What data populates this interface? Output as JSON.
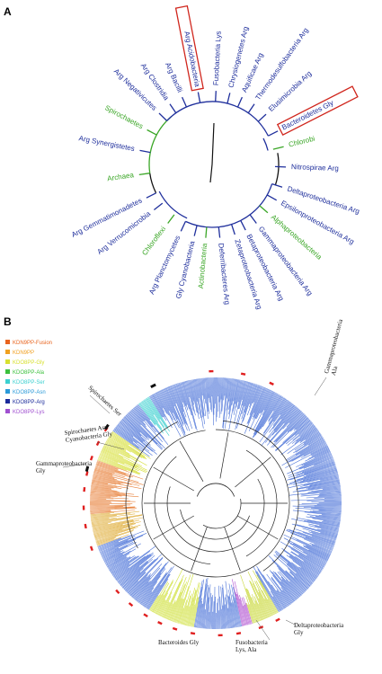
{
  "colors": {
    "blue": "#1f2f9c",
    "green": "#3aa626",
    "black": "#111111",
    "red_box": "#d0261d",
    "tree_blue": "#4a72d8",
    "tree_line": "#222222",
    "marker_red": "#e02020",
    "marker_black": "#101010"
  },
  "panel_a": {
    "letter": "A",
    "taxa": [
      {
        "name": "Acidobacteria",
        "aa": "Arg",
        "color": "blue",
        "boxed": true
      },
      {
        "name": "Fusobacteria",
        "aa": "Lys",
        "color": "blue",
        "boxed": false
      },
      {
        "name": "Chrysiogenetes",
        "aa": "Arg",
        "color": "blue",
        "boxed": false
      },
      {
        "name": "Aquificae",
        "aa": "Arg",
        "color": "blue",
        "boxed": false
      },
      {
        "name": "Thermodesulfobacteria",
        "aa": "Arg",
        "color": "blue",
        "boxed": false
      },
      {
        "name": "Elusimicrobia",
        "aa": "Arg",
        "color": "blue",
        "boxed": false
      },
      {
        "name": "Bacteroidetes",
        "aa": "Gly",
        "color": "blue",
        "boxed": true
      },
      {
        "name": "Chlorobi",
        "aa": "",
        "color": "green",
        "boxed": false
      },
      {
        "name": "Nitrospirae",
        "aa": "Arg",
        "color": "blue",
        "boxed": false
      },
      {
        "name": "Deltaproteobacteria",
        "aa": "Arg",
        "color": "blue",
        "boxed": false
      },
      {
        "name": "Epsilonproteobacteria",
        "aa": "Arg",
        "color": "blue",
        "boxed": false
      },
      {
        "name": "Alphaproteobacteria",
        "aa": "",
        "color": "green",
        "boxed": false
      },
      {
        "name": "Gammaproteobacteria",
        "aa": "Arg",
        "color": "blue",
        "boxed": false
      },
      {
        "name": "Betaproteobacteria",
        "aa": "Arg",
        "color": "blue",
        "boxed": false
      },
      {
        "name": "Zetaproteobacteria",
        "aa": "Arg",
        "color": "blue",
        "boxed": false
      },
      {
        "name": "Deferribacteres",
        "aa": "Arg",
        "color": "blue",
        "boxed": false
      },
      {
        "name": "Actinobacteria",
        "aa": "",
        "color": "green",
        "boxed": false
      },
      {
        "name": "Cyanobacteria",
        "aa": "Gly",
        "color": "blue",
        "boxed": false
      },
      {
        "name": "Planctomycetes",
        "aa": "Arg",
        "color": "blue",
        "boxed": false
      },
      {
        "name": "Chloroflexi",
        "aa": "",
        "color": "green",
        "boxed": false
      },
      {
        "name": "Verrucomicrobia",
        "aa": "Arg",
        "color": "blue",
        "boxed": false
      },
      {
        "name": "Gemmatimonadetes",
        "aa": "Arg",
        "color": "blue",
        "boxed": false
      },
      {
        "name": "Archaea",
        "aa": "",
        "color": "green",
        "boxed": false
      },
      {
        "name": "Synergistetes",
        "aa": "Arg",
        "color": "blue",
        "boxed": false
      },
      {
        "name": "Spirochaetes",
        "aa": "",
        "color": "green",
        "boxed": false
      },
      {
        "name": "Negativicutes",
        "aa": "Arg",
        "color": "blue",
        "boxed": false
      },
      {
        "name": "Clostridia",
        "aa": "Arg",
        "color": "blue",
        "boxed": false
      },
      {
        "name": "Bacilli",
        "aa": "Arg",
        "color": "blue",
        "boxed": false
      }
    ]
  },
  "panel_b": {
    "letter": "B",
    "legend": [
      {
        "label": "KDN9PP-Fusion",
        "color": "#e8641e"
      },
      {
        "label": "KDN9PP",
        "color": "#f0a020"
      },
      {
        "label": "KDO8PP-Gly",
        "color": "#d8e030"
      },
      {
        "label": "KDO8PP-Ala",
        "color": "#3cc03c"
      },
      {
        "label": "KDO8PP-Ser",
        "color": "#3cd0d0"
      },
      {
        "label": "KDO8PP-Asn",
        "color": "#2a9ad8"
      },
      {
        "label": "KDO8PP-Arg",
        "color": "#1a2a9a"
      },
      {
        "label": "KDO8PP-Lys",
        "color": "#a050d0"
      }
    ],
    "annotations": {
      "spirochaetes_ser": [
        "Spirochaetes Ser"
      ],
      "spirochaetes_asn": [
        "Spirochaetes Asn",
        "Cyanobacteria Gly"
      ],
      "gamma_gly": [
        "Gammaproteobacteria",
        "Gly"
      ],
      "gamma_ala": [
        "Gammaproteobacteria",
        "Ala"
      ],
      "bacteroides": [
        "Bacteroides Gly"
      ],
      "fuso": [
        "Fusobacteria",
        "Lys, Ala"
      ],
      "delta": [
        "Deltaproteobacteria",
        "Gly"
      ]
    }
  }
}
